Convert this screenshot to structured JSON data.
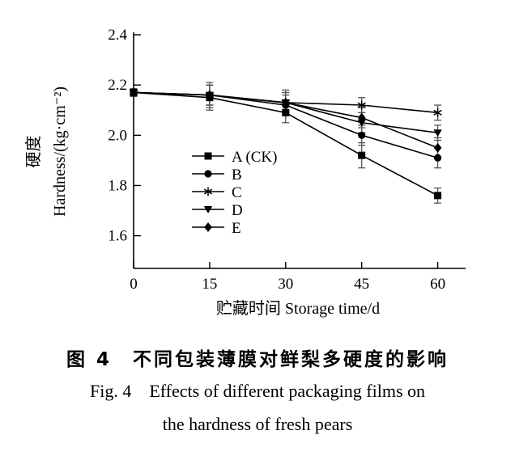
{
  "figure": {
    "caption_zh": "图 4　不同包装薄膜对鲜梨多硬度的影响",
    "caption_en_line1": "Fig. 4　Effects of different packaging films on",
    "caption_en_line2": "the hardness of fresh pears"
  },
  "chart_data": {
    "type": "line",
    "title": "",
    "xlabel": "贮藏时间 Storage time/d",
    "ylabel_zh": "硬度",
    "ylabel_en": "Hardness/(kg·cm⁻²)",
    "x": [
      0,
      15,
      30,
      45,
      60
    ],
    "xtick_labels": [
      "0",
      "15",
      "30",
      "45",
      "60"
    ],
    "yticks": [
      1.6,
      1.8,
      2.0,
      2.2,
      2.4
    ],
    "ytick_labels": [
      "1.6",
      "1.8",
      "2.0",
      "2.2",
      "2.4"
    ],
    "ylim": [
      1.47,
      2.4
    ],
    "xlim": [
      0,
      65.5
    ],
    "grid": false,
    "legend_position": "inside-left-center",
    "line_color": "#000000",
    "errorbar_color": "#555555",
    "series": [
      {
        "name": "A (CK)",
        "marker": "square",
        "values": [
          2.17,
          2.15,
          2.09,
          1.92,
          1.76
        ],
        "errors": [
          0.015,
          0.05,
          0.04,
          0.05,
          0.03
        ]
      },
      {
        "name": "B",
        "marker": "circle",
        "values": [
          2.17,
          2.16,
          2.12,
          2.0,
          1.91
        ],
        "errors": [
          0.015,
          0.04,
          0.04,
          0.04,
          0.04
        ]
      },
      {
        "name": "C",
        "marker": "asterisk",
        "values": [
          2.17,
          2.16,
          2.13,
          2.12,
          2.09
        ],
        "errors": [
          0.015,
          0.05,
          0.05,
          0.03,
          0.03
        ]
      },
      {
        "name": "D",
        "marker": "triangle-down",
        "values": [
          2.17,
          2.16,
          2.13,
          2.05,
          2.01
        ],
        "errors": [
          0.015,
          0.04,
          0.04,
          0.04,
          0.03
        ]
      },
      {
        "name": "E",
        "marker": "diamond",
        "values": [
          2.17,
          2.16,
          2.13,
          2.07,
          1.95
        ],
        "errors": [
          0.015,
          0.04,
          0.04,
          0.04,
          0.04
        ]
      }
    ]
  }
}
